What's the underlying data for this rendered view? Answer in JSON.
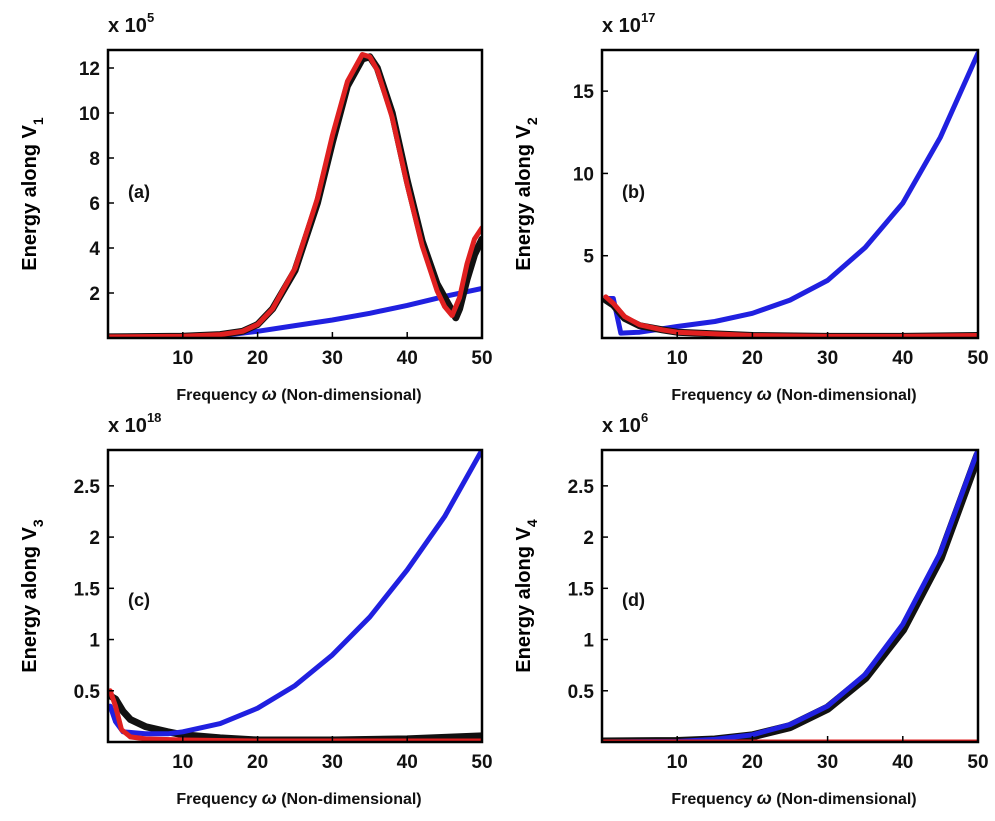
{
  "chart_data": [
    {
      "type": "line",
      "panel_label": "(a)",
      "multiplier_base": "x 10",
      "multiplier_exp": "5",
      "ylabel_text": "Energy along V",
      "ylabel_sub": "1",
      "xlabel_text": "Frequency ",
      "xlabel_symbol": "ω",
      "xlabel_rest": " (Non-dimensional)",
      "xlim": [
        0,
        50
      ],
      "ylim": [
        0,
        12.8
      ],
      "xticks": [
        10,
        20,
        30,
        40,
        50
      ],
      "yticks": [
        2,
        4,
        6,
        8,
        10,
        12
      ],
      "grid": false,
      "series": [
        {
          "color": "#2020e0",
          "width": 5,
          "points": [
            [
              0,
              0
            ],
            [
              10,
              0
            ],
            [
              15,
              0.1
            ],
            [
              20,
              0.3
            ],
            [
              25,
              0.55
            ],
            [
              30,
              0.8
            ],
            [
              35,
              1.1
            ],
            [
              40,
              1.45
            ],
            [
              45,
              1.85
            ],
            [
              50,
              2.2
            ]
          ]
        },
        {
          "color": "#111111",
          "width": 7,
          "points": [
            [
              0,
              0.05
            ],
            [
              10,
              0.08
            ],
            [
              15,
              0.15
            ],
            [
              18,
              0.3
            ],
            [
              20,
              0.6
            ],
            [
              22,
              1.3
            ],
            [
              25,
              3.0
            ],
            [
              28,
              6.0
            ],
            [
              30,
              8.7
            ],
            [
              32,
              11.2
            ],
            [
              34,
              12.4
            ],
            [
              35,
              12.5
            ],
            [
              36,
              12.0
            ],
            [
              38,
              10.0
            ],
            [
              40,
              7.0
            ],
            [
              42,
              4.3
            ],
            [
              44,
              2.4
            ],
            [
              45,
              1.8
            ],
            [
              46,
              1.2
            ],
            [
              46.5,
              0.9
            ],
            [
              47,
              1.3
            ],
            [
              48,
              2.6
            ],
            [
              49,
              3.7
            ],
            [
              50,
              4.4
            ]
          ]
        },
        {
          "color": "#e02020",
          "width": 5,
          "points": [
            [
              0,
              0.05
            ],
            [
              10,
              0.08
            ],
            [
              15,
              0.15
            ],
            [
              18,
              0.3
            ],
            [
              20,
              0.6
            ],
            [
              22,
              1.3
            ],
            [
              25,
              3.1
            ],
            [
              28,
              6.2
            ],
            [
              30,
              9.0
            ],
            [
              32,
              11.4
            ],
            [
              34,
              12.6
            ],
            [
              35,
              12.5
            ],
            [
              36,
              11.9
            ],
            [
              38,
              9.8
            ],
            [
              40,
              6.8
            ],
            [
              42,
              4.1
            ],
            [
              44,
              2.1
            ],
            [
              45,
              1.4
            ],
            [
              46,
              1.0
            ],
            [
              47,
              1.8
            ],
            [
              48,
              3.3
            ],
            [
              49,
              4.4
            ],
            [
              50,
              4.9
            ]
          ]
        }
      ]
    },
    {
      "type": "line",
      "panel_label": "(b)",
      "multiplier_base": "x 10",
      "multiplier_exp": "17",
      "ylabel_text": "Energy along V",
      "ylabel_sub": "2",
      "xlabel_text": "Frequency ",
      "xlabel_symbol": "ω",
      "xlabel_rest": " (Non-dimensional)",
      "xlim": [
        0,
        50
      ],
      "ylim": [
        0,
        17.5
      ],
      "xticks": [
        10,
        20,
        30,
        40,
        50
      ],
      "yticks": [
        5,
        10,
        15
      ],
      "grid": false,
      "series": [
        {
          "color": "#2020e0",
          "width": 5,
          "points": [
            [
              0.5,
              2.4
            ],
            [
              1.5,
              2.4
            ],
            [
              2.5,
              0.3
            ],
            [
              5,
              0.35
            ],
            [
              10,
              0.7
            ],
            [
              15,
              1.0
            ],
            [
              20,
              1.5
            ],
            [
              25,
              2.3
            ],
            [
              30,
              3.5
            ],
            [
              35,
              5.5
            ],
            [
              40,
              8.2
            ],
            [
              45,
              12.2
            ],
            [
              50,
              17.3
            ]
          ]
        },
        {
          "color": "#111111",
          "width": 7,
          "points": [
            [
              0.5,
              2.3
            ],
            [
              1.5,
              2.0
            ],
            [
              3,
              1.2
            ],
            [
              5,
              0.75
            ],
            [
              8,
              0.5
            ],
            [
              10,
              0.35
            ],
            [
              20,
              0.15
            ],
            [
              30,
              0.1
            ],
            [
              40,
              0.1
            ],
            [
              50,
              0.15
            ]
          ]
        },
        {
          "color": "#e02020",
          "width": 5,
          "points": [
            [
              0.5,
              2.5
            ],
            [
              1.5,
              2.1
            ],
            [
              3,
              1.3
            ],
            [
              5,
              0.8
            ],
            [
              8,
              0.5
            ],
            [
              10,
              0.35
            ],
            [
              20,
              0.15
            ],
            [
              30,
              0.1
            ],
            [
              40,
              0.1
            ],
            [
              50,
              0.15
            ]
          ]
        }
      ]
    },
    {
      "type": "line",
      "panel_label": "(c)",
      "multiplier_base": "x 10",
      "multiplier_exp": "18",
      "ylabel_text": "Energy along V",
      "ylabel_sub": "3",
      "xlabel_text": "Frequency ",
      "xlabel_symbol": "ω",
      "xlabel_rest": " (Non-dimensional)",
      "xlim": [
        0,
        50
      ],
      "ylim": [
        0,
        2.85
      ],
      "xticks": [
        10,
        20,
        30,
        40,
        50
      ],
      "yticks": [
        "0.5",
        "1",
        "1.5",
        "2",
        "2.5"
      ],
      "grid": false,
      "series": [
        {
          "color": "#111111",
          "width": 7,
          "points": [
            [
              0.3,
              0.45
            ],
            [
              1,
              0.42
            ],
            [
              2,
              0.3
            ],
            [
              3,
              0.22
            ],
            [
              5,
              0.15
            ],
            [
              8,
              0.1
            ],
            [
              10,
              0.07
            ],
            [
              15,
              0.04
            ],
            [
              20,
              0.02
            ],
            [
              30,
              0.02
            ],
            [
              40,
              0.03
            ],
            [
              50,
              0.06
            ]
          ]
        },
        {
          "color": "#2020e0",
          "width": 5,
          "points": [
            [
              0.3,
              0.35
            ],
            [
              1,
              0.2
            ],
            [
              2,
              0.1
            ],
            [
              5,
              0.08
            ],
            [
              8,
              0.08
            ],
            [
              10,
              0.1
            ],
            [
              15,
              0.18
            ],
            [
              20,
              0.33
            ],
            [
              25,
              0.55
            ],
            [
              30,
              0.85
            ],
            [
              35,
              1.22
            ],
            [
              40,
              1.68
            ],
            [
              45,
              2.2
            ],
            [
              50,
              2.85
            ]
          ]
        },
        {
          "color": "#e02020",
          "width": 5,
          "points": [
            [
              0.3,
              0.5
            ],
            [
              1,
              0.35
            ],
            [
              1.8,
              0.12
            ],
            [
              3,
              0.05
            ],
            [
              5,
              0.03
            ],
            [
              10,
              0.02
            ],
            [
              20,
              0.01
            ],
            [
              30,
              0.01
            ],
            [
              40,
              0.01
            ],
            [
              50,
              0.01
            ]
          ]
        }
      ]
    },
    {
      "type": "line",
      "panel_label": "(d)",
      "multiplier_base": "x 10",
      "multiplier_exp": "6",
      "ylabel_text": "Energy along V",
      "ylabel_sub": "4",
      "xlabel_text": "Frequency ",
      "xlabel_symbol": "ω",
      "xlabel_rest": " (Non-dimensional)",
      "xlim": [
        0,
        50
      ],
      "ylim": [
        0,
        2.85
      ],
      "xticks": [
        10,
        20,
        30,
        40,
        50
      ],
      "yticks": [
        "0.5",
        "1",
        "1.5",
        "2",
        "2.5"
      ],
      "grid": false,
      "series": [
        {
          "color": "#111111",
          "width": 9,
          "points": [
            [
              0,
              0
            ],
            [
              10,
              0.005
            ],
            [
              15,
              0.02
            ],
            [
              20,
              0.06
            ],
            [
              25,
              0.15
            ],
            [
              30,
              0.33
            ],
            [
              35,
              0.63
            ],
            [
              40,
              1.1
            ],
            [
              45,
              1.8
            ],
            [
              50,
              2.8
            ]
          ]
        },
        {
          "color": "#2020e0",
          "width": 5,
          "points": [
            [
              0,
              0
            ],
            [
              10,
              0.005
            ],
            [
              15,
              0.025
            ],
            [
              20,
              0.07
            ],
            [
              25,
              0.17
            ],
            [
              30,
              0.35
            ],
            [
              35,
              0.66
            ],
            [
              40,
              1.15
            ],
            [
              45,
              1.85
            ],
            [
              50,
              2.85
            ]
          ]
        },
        {
          "color": "#e02020",
          "width": 5,
          "points": [
            [
              0,
              0
            ],
            [
              10,
              0
            ],
            [
              20,
              0
            ],
            [
              30,
              0
            ],
            [
              40,
              0
            ],
            [
              50,
              0
            ]
          ]
        }
      ]
    }
  ]
}
